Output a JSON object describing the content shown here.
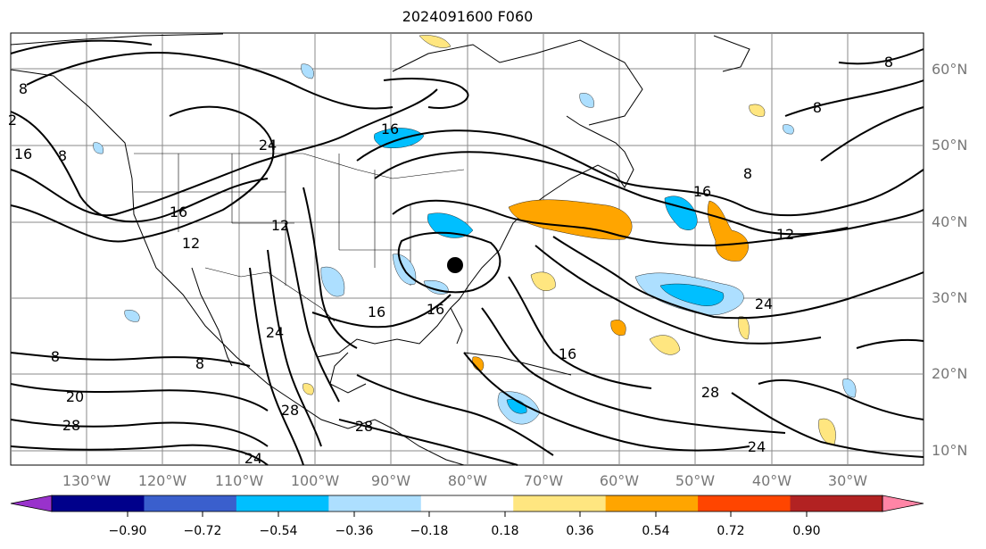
{
  "title": "2024091600 F060",
  "map": {
    "lat_labels": [
      "60°N",
      "50°N",
      "40°N",
      "30°N",
      "20°N",
      "10°N"
    ],
    "lon_labels": [
      "130°W",
      "120°W",
      "110°W",
      "100°W",
      "90°W",
      "80°W",
      "70°W",
      "60°W",
      "50°W",
      "40°W",
      "30°W"
    ],
    "contour_labels": [
      "8",
      "2",
      "16",
      "8",
      "24",
      "16",
      "16",
      "12",
      "12",
      "16",
      "8",
      "8",
      "8",
      "16",
      "12",
      "8",
      "24",
      "20",
      "28",
      "8",
      "16",
      "24",
      "28",
      "24",
      "28",
      "24",
      "28",
      "16"
    ],
    "center_marker": "storm-center"
  },
  "colorbar": {
    "colors": [
      "#9932CC",
      "#00008B",
      "#3A5FCD",
      "#00BFFF",
      "#ADDFFF",
      "#FFFFFF",
      "#FFE680",
      "#FFA500",
      "#FF4500",
      "#B22222",
      "#FF85A6"
    ],
    "ticks": [
      "−0.90",
      "−0.72",
      "−0.54",
      "−0.36",
      "−0.18",
      "0.18",
      "0.36",
      "0.54",
      "0.72",
      "0.90"
    ]
  }
}
